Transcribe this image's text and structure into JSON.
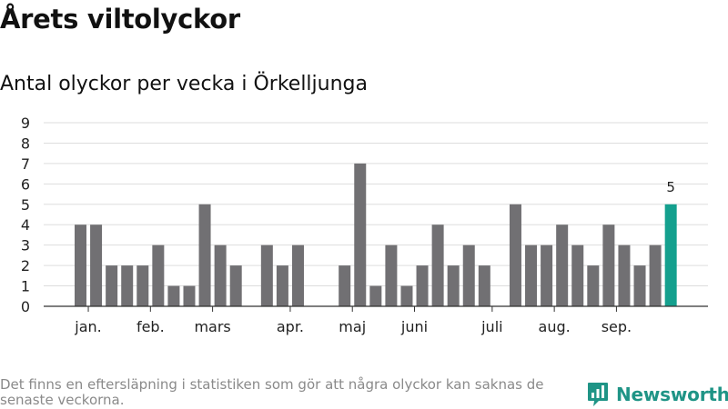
{
  "title": "Årets viltolyckor",
  "subtitle": "Antal olyckor per vecka i Örkelljunga",
  "footnote": "Det finns en eftersläpning i statistiken som gör att några olyckor kan saknas de senaste veckorna.",
  "brand": {
    "name": "Newsworthy",
    "icon": "newsworthy-logo-icon"
  },
  "colors": {
    "bar": "#717073",
    "highlight": "#14a08e",
    "grid": "#dddddd",
    "axis": "#333333",
    "brand": "#1f9486"
  },
  "chart_data": {
    "type": "bar",
    "title": "Antal olyckor per vecka i Örkelljunga",
    "xlabel": "",
    "ylabel": "",
    "ylim": [
      0,
      9
    ],
    "yticks": [
      0,
      1,
      2,
      3,
      4,
      5,
      6,
      7,
      8,
      9
    ],
    "grid": true,
    "weeks": [
      1,
      2,
      3,
      4,
      5,
      6,
      7,
      8,
      9,
      10,
      11,
      12,
      13,
      14,
      15,
      16,
      17,
      18,
      19,
      20,
      21,
      22,
      23,
      24,
      25,
      26,
      27,
      28,
      29,
      30,
      31,
      32,
      33,
      34,
      35,
      36,
      37,
      38,
      39,
      40
    ],
    "values": [
      4,
      4,
      2,
      2,
      2,
      3,
      1,
      1,
      5,
      3,
      2,
      0,
      3,
      2,
      3,
      0,
      0,
      2,
      7,
      1,
      3,
      1,
      2,
      4,
      2,
      3,
      2,
      0,
      5,
      3,
      3,
      4,
      3,
      2,
      4,
      3,
      2,
      3,
      5,
      null
    ],
    "highlight_index": 38,
    "highlight_label": "5",
    "month_labels": [
      {
        "label": "jan.",
        "position": 1.5
      },
      {
        "label": "feb.",
        "position": 5.5
      },
      {
        "label": "mars",
        "position": 9.5
      },
      {
        "label": "apr.",
        "position": 14.5
      },
      {
        "label": "maj",
        "position": 18.5
      },
      {
        "label": "juni",
        "position": 22.5
      },
      {
        "label": "juli",
        "position": 27.5
      },
      {
        "label": "aug.",
        "position": 31.5
      },
      {
        "label": "sep.",
        "position": 35.5
      }
    ]
  }
}
